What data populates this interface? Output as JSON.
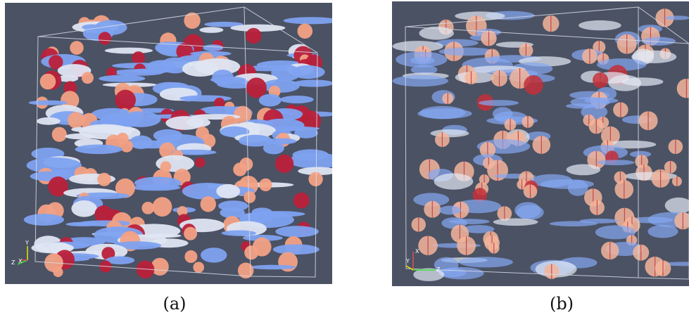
{
  "panels": [
    {
      "id": "a",
      "caption": "(a)",
      "background": "#4b5264",
      "triad_labels": [
        "Y",
        "Z",
        "X"
      ],
      "colors": {
        "flat_particle": "#7ea2f0",
        "flat_particle_light": "#dfe5f2",
        "sphere_particle": "#f2a184",
        "sphere_particle_dark": "#b9203a",
        "bounding_box": "#d9dde6"
      }
    },
    {
      "id": "b",
      "caption": "(b)",
      "background": "#4b5264",
      "triad_labels": [
        "X",
        "Y",
        "Z"
      ],
      "colors": {
        "flat_particle": "#86a8f2",
        "flat_particle_light": "#e4e9f3",
        "sphere_particle": "#f3b59b",
        "sphere_particle_dark": "#c2303a",
        "bounding_box": "#d9dde6"
      }
    }
  ]
}
